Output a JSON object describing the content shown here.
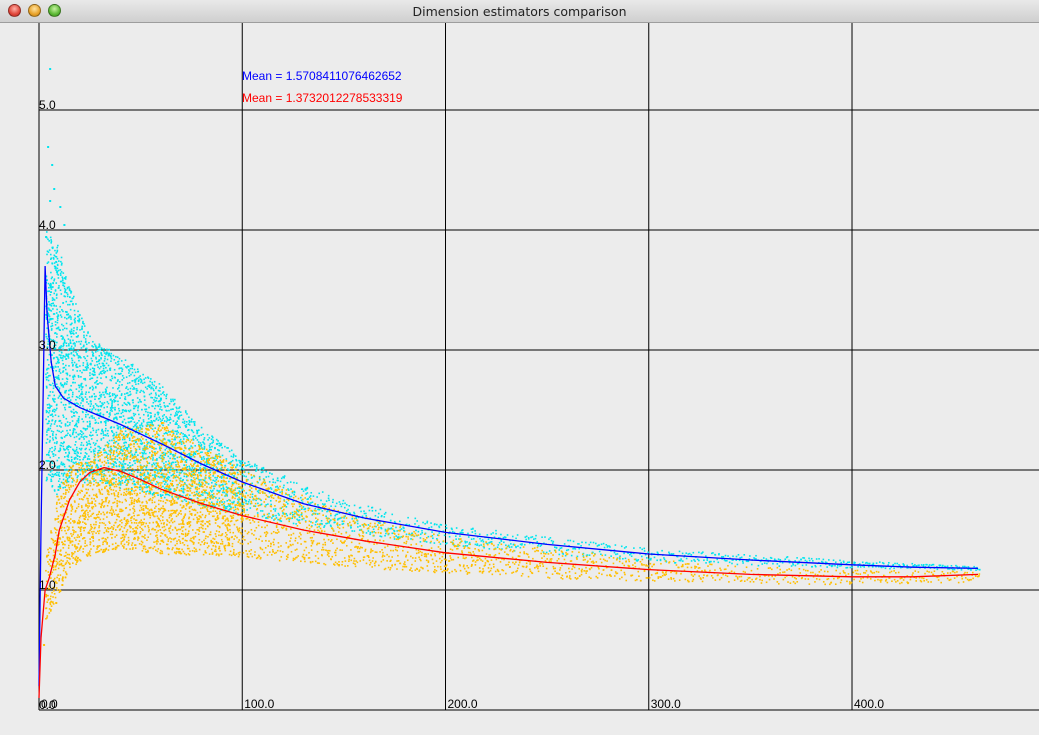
{
  "window": {
    "title": "Dimension estimators comparison"
  },
  "legend": {
    "blue_label": "Mean = 1.5708411076462652",
    "red_label": "Mean = 1.3732012278533319"
  },
  "colors": {
    "background": "#ececec",
    "grid": "#000000",
    "blue_mean_line": "#0000ff",
    "red_mean_line": "#ff0000",
    "cyan_points": "#00e5ee",
    "orange_points": "#ffbf00"
  },
  "chart_data": {
    "type": "scatter",
    "title": "",
    "xlabel": "",
    "ylabel": "",
    "xlim": [
      0,
      492
    ],
    "ylim": [
      0,
      5.7
    ],
    "grid": true,
    "x_ticks": [
      0,
      100,
      200,
      300,
      400
    ],
    "x_tick_labels": [
      "0.0",
      "100.0",
      "200.0",
      "300.0",
      "400.0"
    ],
    "y_ticks": [
      0,
      1,
      2,
      3,
      4,
      5
    ],
    "y_tick_labels": [
      "0.0",
      "1.0",
      "2.0",
      "3.0",
      "4.0",
      "5.0"
    ],
    "series": [
      {
        "kind": "line",
        "color": "#0000ff",
        "points": [
          [
            0,
            0.2
          ],
          [
            1,
            1.5
          ],
          [
            2,
            2.6
          ],
          [
            3,
            3.7
          ],
          [
            4,
            3.3
          ],
          [
            6,
            2.9
          ],
          [
            8,
            2.7
          ],
          [
            12,
            2.6
          ],
          [
            20,
            2.52
          ],
          [
            30,
            2.45
          ],
          [
            40,
            2.38
          ],
          [
            60,
            2.22
          ],
          [
            80,
            2.05
          ],
          [
            100,
            1.9
          ],
          [
            130,
            1.72
          ],
          [
            160,
            1.6
          ],
          [
            200,
            1.48
          ],
          [
            250,
            1.38
          ],
          [
            300,
            1.3
          ],
          [
            350,
            1.25
          ],
          [
            400,
            1.21
          ],
          [
            430,
            1.19
          ],
          [
            462,
            1.18
          ]
        ]
      },
      {
        "kind": "line",
        "color": "#ff0000",
        "points": [
          [
            0,
            0.1
          ],
          [
            1,
            0.6
          ],
          [
            3,
            1.0
          ],
          [
            5,
            1.1
          ],
          [
            8,
            1.3
          ],
          [
            10,
            1.5
          ],
          [
            15,
            1.75
          ],
          [
            20,
            1.9
          ],
          [
            25,
            1.98
          ],
          [
            32,
            2.02
          ],
          [
            40,
            1.99
          ],
          [
            50,
            1.92
          ],
          [
            60,
            1.84
          ],
          [
            80,
            1.72
          ],
          [
            100,
            1.62
          ],
          [
            130,
            1.5
          ],
          [
            160,
            1.41
          ],
          [
            200,
            1.31
          ],
          [
            250,
            1.23
          ],
          [
            300,
            1.17
          ],
          [
            350,
            1.13
          ],
          [
            400,
            1.11
          ],
          [
            430,
            1.11
          ],
          [
            462,
            1.13
          ]
        ]
      },
      {
        "kind": "scatter-band",
        "color": "#00e5ee",
        "upper": [
          [
            3,
            4.0
          ],
          [
            8,
            3.9
          ],
          [
            15,
            3.5
          ],
          [
            25,
            3.1
          ],
          [
            40,
            2.95
          ],
          [
            60,
            2.7
          ],
          [
            80,
            2.35
          ],
          [
            100,
            2.1
          ],
          [
            150,
            1.75
          ],
          [
            200,
            1.55
          ],
          [
            250,
            1.45
          ],
          [
            300,
            1.35
          ],
          [
            350,
            1.3
          ],
          [
            400,
            1.25
          ],
          [
            462,
            1.2
          ]
        ],
        "lower": [
          [
            3,
            1.9
          ],
          [
            8,
            1.8
          ],
          [
            15,
            1.9
          ],
          [
            25,
            1.9
          ],
          [
            40,
            1.85
          ],
          [
            60,
            1.78
          ],
          [
            80,
            1.7
          ],
          [
            100,
            1.63
          ],
          [
            150,
            1.48
          ],
          [
            200,
            1.38
          ],
          [
            250,
            1.3
          ],
          [
            300,
            1.24
          ],
          [
            350,
            1.21
          ],
          [
            400,
            1.19
          ],
          [
            462,
            1.17
          ]
        ],
        "outliers": [
          [
            5,
            5.35
          ],
          [
            4,
            4.7
          ],
          [
            6,
            4.55
          ],
          [
            7,
            4.35
          ],
          [
            5,
            4.25
          ],
          [
            10,
            4.2
          ],
          [
            12,
            4.05
          ],
          [
            3,
            3.95
          ]
        ]
      },
      {
        "kind": "scatter-band",
        "color": "#ffbf00",
        "upper": [
          [
            3,
            1.3
          ],
          [
            8,
            1.8
          ],
          [
            15,
            2.05
          ],
          [
            25,
            2.1
          ],
          [
            40,
            2.35
          ],
          [
            60,
            2.4
          ],
          [
            80,
            2.2
          ],
          [
            100,
            2.0
          ],
          [
            150,
            1.65
          ],
          [
            200,
            1.45
          ],
          [
            250,
            1.35
          ],
          [
            300,
            1.26
          ],
          [
            350,
            1.2
          ],
          [
            400,
            1.17
          ],
          [
            462,
            1.16
          ]
        ],
        "lower": [
          [
            3,
            0.75
          ],
          [
            8,
            0.95
          ],
          [
            15,
            1.2
          ],
          [
            25,
            1.3
          ],
          [
            40,
            1.35
          ],
          [
            60,
            1.3
          ],
          [
            80,
            1.3
          ],
          [
            100,
            1.28
          ],
          [
            150,
            1.2
          ],
          [
            200,
            1.14
          ],
          [
            250,
            1.1
          ],
          [
            300,
            1.08
          ],
          [
            350,
            1.06
          ],
          [
            400,
            1.05
          ],
          [
            462,
            1.07
          ]
        ],
        "outliers": [
          [
            8,
            0.9
          ],
          [
            10,
            1.0
          ],
          [
            11,
            1.05
          ],
          [
            2,
            0.55
          ],
          [
            60,
            2.4
          ],
          [
            100,
            2.05
          ]
        ]
      }
    ]
  }
}
